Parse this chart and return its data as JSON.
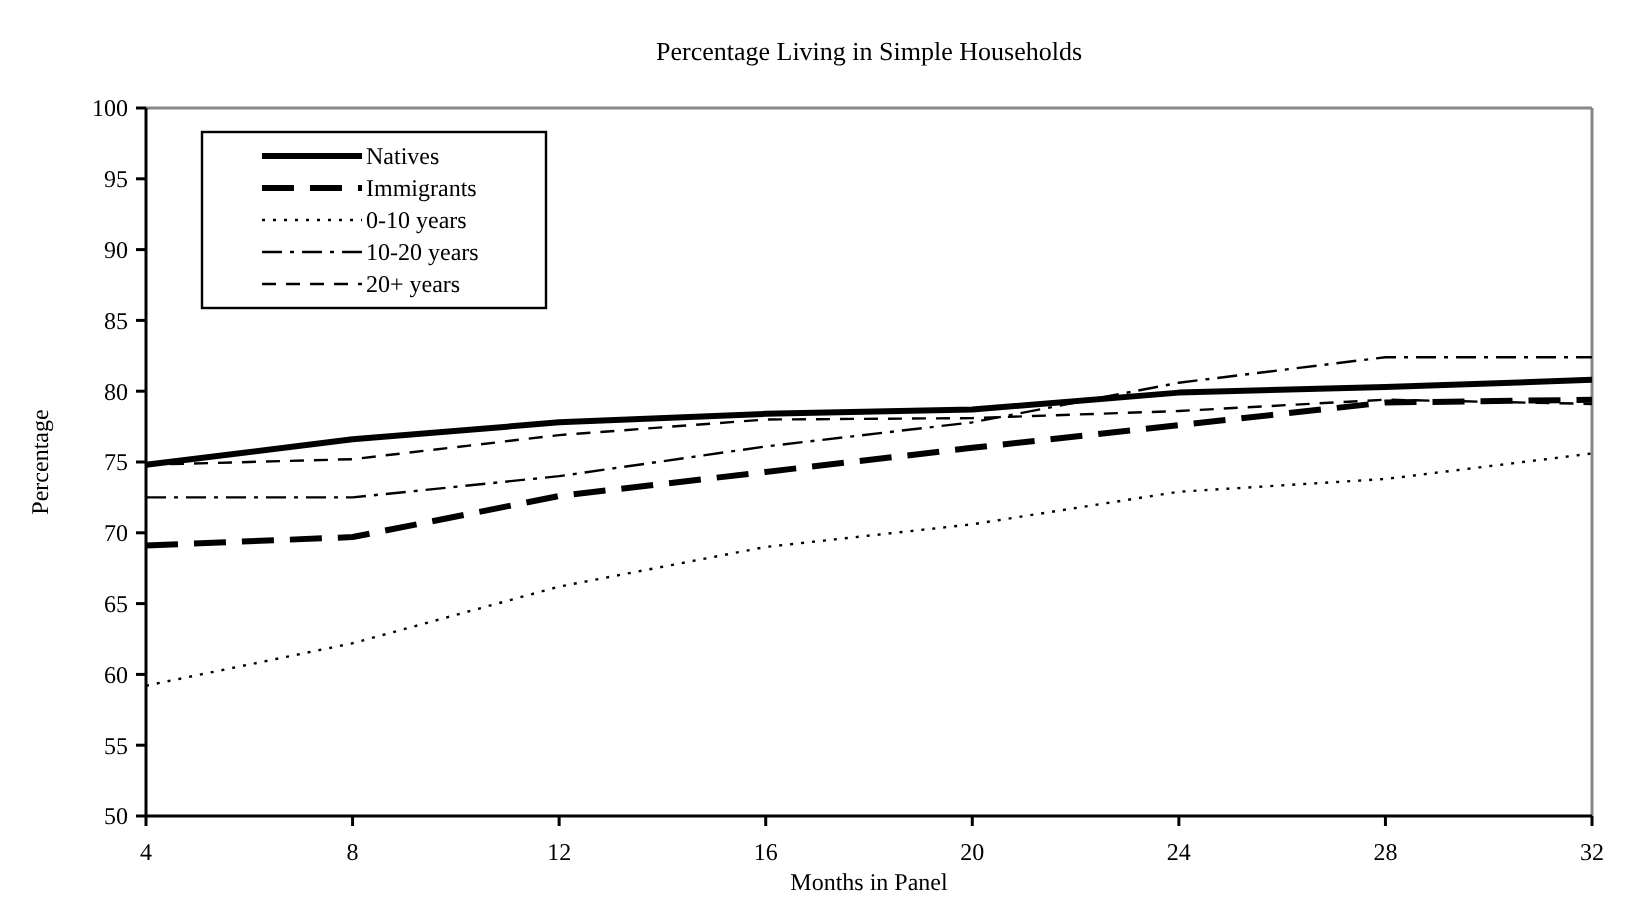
{
  "chart_data": {
    "type": "line",
    "title": "Percentage Living  in Simple Households",
    "xlabel": "Months in Panel",
    "ylabel": "Percentage",
    "x": [
      4,
      8,
      12,
      16,
      20,
      24,
      28,
      32
    ],
    "xlim": [
      4,
      32
    ],
    "xticks": [
      4,
      8,
      12,
      16,
      20,
      24,
      28,
      32
    ],
    "ylim": [
      50,
      100
    ],
    "yticks": [
      50,
      55,
      60,
      65,
      70,
      75,
      80,
      85,
      90,
      95,
      100
    ],
    "grid": false,
    "legend": "top left",
    "marker": "none",
    "series": [
      {
        "name": "Natives",
        "color": "#000000",
        "line_style": "solid",
        "values": [
          74.8,
          76.6,
          77.8,
          78.4,
          78.7,
          79.9,
          80.3,
          80.8
        ]
      },
      {
        "name": "Immigrants",
        "color": "#000000",
        "line_style": "dashed",
        "values": [
          69.1,
          69.7,
          72.6,
          74.3,
          76.0,
          77.6,
          79.2,
          79.4
        ]
      },
      {
        "name": "0-10 years",
        "color": "#000000",
        "line_style": "dotted",
        "values": [
          59.2,
          62.2,
          66.2,
          69.0,
          70.6,
          72.9,
          73.8,
          75.6
        ]
      },
      {
        "name": "10-20 years",
        "color": "#000000",
        "line_style": "dashdot",
        "values": [
          72.5,
          72.5,
          74.0,
          76.1,
          77.8,
          80.6,
          82.4,
          82.4
        ]
      },
      {
        "name": "20+ years",
        "color": "#000000",
        "line_style": "dashed",
        "values": [
          74.8,
          75.2,
          76.9,
          78.0,
          78.1,
          78.6,
          79.4,
          79.1
        ]
      }
    ]
  }
}
